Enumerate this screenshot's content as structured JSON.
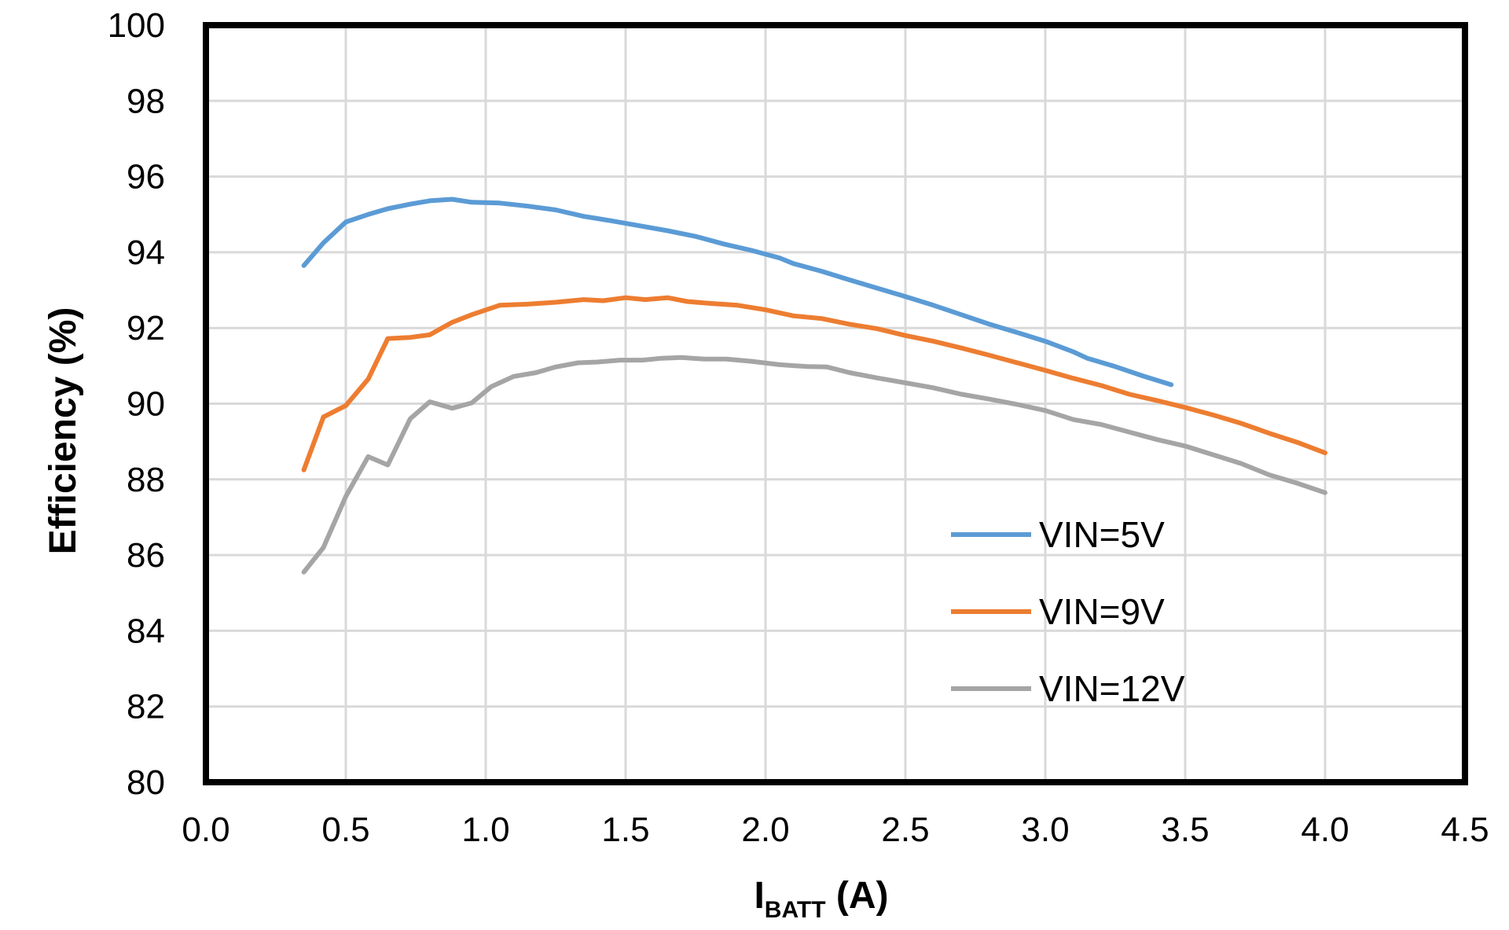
{
  "chart_data": {
    "type": "line",
    "title": "",
    "xlabel": {
      "main": "I",
      "sub": "BATT",
      "unit": " (A)"
    },
    "ylabel": "Efficiency (%)",
    "xlim": [
      0,
      4.5
    ],
    "ylim": [
      80,
      100
    ],
    "x_ticks": [
      "0.0",
      "0.5",
      "1.0",
      "1.5",
      "2.0",
      "2.5",
      "3.0",
      "3.5",
      "4.0",
      "4.5"
    ],
    "y_ticks": [
      "80",
      "82",
      "84",
      "86",
      "88",
      "90",
      "92",
      "94",
      "96",
      "98",
      "100"
    ],
    "grid": true,
    "legend_position": "bottom-right inside",
    "series": [
      {
        "name": "VIN=5V",
        "color": "#5B9BD5",
        "points": [
          [
            0.35,
            93.65
          ],
          [
            0.42,
            94.25
          ],
          [
            0.5,
            94.8
          ],
          [
            0.58,
            95.0
          ],
          [
            0.65,
            95.15
          ],
          [
            0.73,
            95.27
          ],
          [
            0.8,
            95.36
          ],
          [
            0.88,
            95.4
          ],
          [
            0.95,
            95.32
          ],
          [
            1.05,
            95.3
          ],
          [
            1.15,
            95.22
          ],
          [
            1.25,
            95.12
          ],
          [
            1.35,
            94.95
          ],
          [
            1.45,
            94.83
          ],
          [
            1.55,
            94.7
          ],
          [
            1.65,
            94.57
          ],
          [
            1.75,
            94.42
          ],
          [
            1.85,
            94.22
          ],
          [
            1.95,
            94.05
          ],
          [
            2.05,
            93.85
          ],
          [
            2.1,
            93.7
          ],
          [
            2.2,
            93.5
          ],
          [
            2.3,
            93.27
          ],
          [
            2.4,
            93.05
          ],
          [
            2.5,
            92.83
          ],
          [
            2.6,
            92.6
          ],
          [
            2.7,
            92.35
          ],
          [
            2.8,
            92.1
          ],
          [
            2.9,
            91.88
          ],
          [
            3.0,
            91.65
          ],
          [
            3.1,
            91.37
          ],
          [
            3.15,
            91.2
          ],
          [
            3.25,
            90.98
          ],
          [
            3.35,
            90.73
          ],
          [
            3.45,
            90.5
          ]
        ]
      },
      {
        "name": "VIN=9V",
        "color": "#ED7D31",
        "points": [
          [
            0.35,
            88.25
          ],
          [
            0.42,
            89.65
          ],
          [
            0.5,
            89.95
          ],
          [
            0.58,
            90.65
          ],
          [
            0.65,
            91.72
          ],
          [
            0.73,
            91.75
          ],
          [
            0.8,
            91.82
          ],
          [
            0.88,
            92.15
          ],
          [
            0.95,
            92.35
          ],
          [
            1.05,
            92.6
          ],
          [
            1.15,
            92.63
          ],
          [
            1.25,
            92.68
          ],
          [
            1.35,
            92.75
          ],
          [
            1.42,
            92.72
          ],
          [
            1.5,
            92.8
          ],
          [
            1.57,
            92.75
          ],
          [
            1.65,
            92.8
          ],
          [
            1.72,
            92.7
          ],
          [
            1.8,
            92.65
          ],
          [
            1.9,
            92.6
          ],
          [
            2.0,
            92.48
          ],
          [
            2.1,
            92.32
          ],
          [
            2.2,
            92.25
          ],
          [
            2.3,
            92.1
          ],
          [
            2.4,
            91.98
          ],
          [
            2.5,
            91.8
          ],
          [
            2.6,
            91.65
          ],
          [
            2.7,
            91.47
          ],
          [
            2.8,
            91.28
          ],
          [
            2.9,
            91.08
          ],
          [
            3.0,
            90.88
          ],
          [
            3.1,
            90.67
          ],
          [
            3.2,
            90.48
          ],
          [
            3.3,
            90.25
          ],
          [
            3.4,
            90.08
          ],
          [
            3.5,
            89.9
          ],
          [
            3.6,
            89.7
          ],
          [
            3.7,
            89.48
          ],
          [
            3.8,
            89.22
          ],
          [
            3.9,
            88.98
          ],
          [
            4.0,
            88.7
          ]
        ]
      },
      {
        "name": "VIN=12V",
        "color": "#A5A5A5",
        "points": [
          [
            0.35,
            85.55
          ],
          [
            0.42,
            86.2
          ],
          [
            0.5,
            87.55
          ],
          [
            0.58,
            88.6
          ],
          [
            0.65,
            88.38
          ],
          [
            0.73,
            89.6
          ],
          [
            0.8,
            90.05
          ],
          [
            0.88,
            89.88
          ],
          [
            0.95,
            90.02
          ],
          [
            1.02,
            90.45
          ],
          [
            1.1,
            90.72
          ],
          [
            1.18,
            90.82
          ],
          [
            1.25,
            90.97
          ],
          [
            1.33,
            91.08
          ],
          [
            1.4,
            91.1
          ],
          [
            1.48,
            91.15
          ],
          [
            1.56,
            91.15
          ],
          [
            1.63,
            91.2
          ],
          [
            1.7,
            91.22
          ],
          [
            1.78,
            91.18
          ],
          [
            1.86,
            91.18
          ],
          [
            1.95,
            91.12
          ],
          [
            2.05,
            91.03
          ],
          [
            2.15,
            90.98
          ],
          [
            2.22,
            90.97
          ],
          [
            2.3,
            90.82
          ],
          [
            2.4,
            90.68
          ],
          [
            2.5,
            90.55
          ],
          [
            2.6,
            90.42
          ],
          [
            2.7,
            90.25
          ],
          [
            2.8,
            90.12
          ],
          [
            2.9,
            89.98
          ],
          [
            3.0,
            89.82
          ],
          [
            3.1,
            89.58
          ],
          [
            3.2,
            89.45
          ],
          [
            3.3,
            89.25
          ],
          [
            3.4,
            89.05
          ],
          [
            3.5,
            88.88
          ],
          [
            3.6,
            88.65
          ],
          [
            3.7,
            88.42
          ],
          [
            3.8,
            88.12
          ],
          [
            3.9,
            87.9
          ],
          [
            4.0,
            87.65
          ]
        ]
      }
    ]
  }
}
